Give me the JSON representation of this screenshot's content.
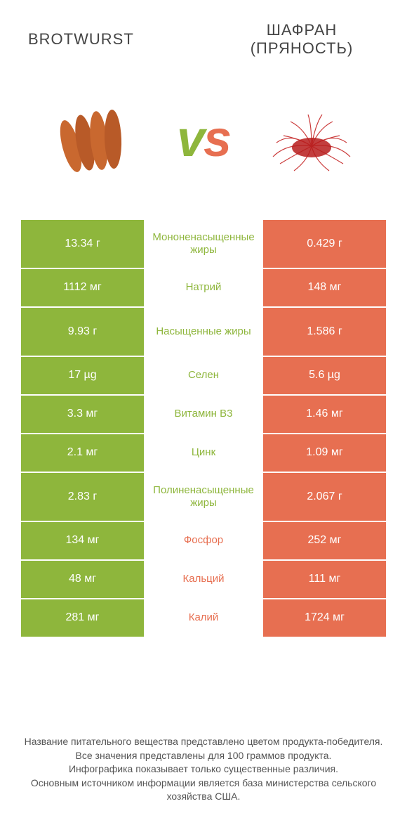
{
  "colors": {
    "left": "#8eb63c",
    "right": "#e76f51",
    "white": "#ffffff"
  },
  "header": {
    "left_title": "BROTWURST",
    "right_title_l1": "ШАФРАН",
    "right_title_l2": "(ПРЯНОСТЬ)",
    "vs": "vs"
  },
  "rows": [
    {
      "left": "13.34 г",
      "mid": "Мононенасыщенные жиры",
      "right": "0.429 г",
      "winner": "left",
      "tall": true
    },
    {
      "left": "1112 мг",
      "mid": "Натрий",
      "right": "148 мг",
      "winner": "left",
      "tall": false
    },
    {
      "left": "9.93 г",
      "mid": "Насыщенные жиры",
      "right": "1.586 г",
      "winner": "left",
      "tall": true
    },
    {
      "left": "17 µg",
      "mid": "Селен",
      "right": "5.6 µg",
      "winner": "left",
      "tall": false
    },
    {
      "left": "3.3 мг",
      "mid": "Витамин B3",
      "right": "1.46 мг",
      "winner": "left",
      "tall": false
    },
    {
      "left": "2.1 мг",
      "mid": "Цинк",
      "right": "1.09 мг",
      "winner": "left",
      "tall": false
    },
    {
      "left": "2.83 г",
      "mid": "Полиненасыщенные жиры",
      "right": "2.067 г",
      "winner": "left",
      "tall": true
    },
    {
      "left": "134 мг",
      "mid": "Фосфор",
      "right": "252 мг",
      "winner": "right",
      "tall": false
    },
    {
      "left": "48 мг",
      "mid": "Кальций",
      "right": "111 мг",
      "winner": "right",
      "tall": false
    },
    {
      "left": "281 мг",
      "mid": "Калий",
      "right": "1724 мг",
      "winner": "right",
      "tall": false
    }
  ],
  "footnote": {
    "l1": "Название питательного вещества представлено цветом продукта-победителя.",
    "l2": "Все значения представлены для 100 граммов продукта.",
    "l3": "Инфографика показывает только существенные различия.",
    "l4": "Основным источником информации является база министерства сельского хозяйства США."
  }
}
